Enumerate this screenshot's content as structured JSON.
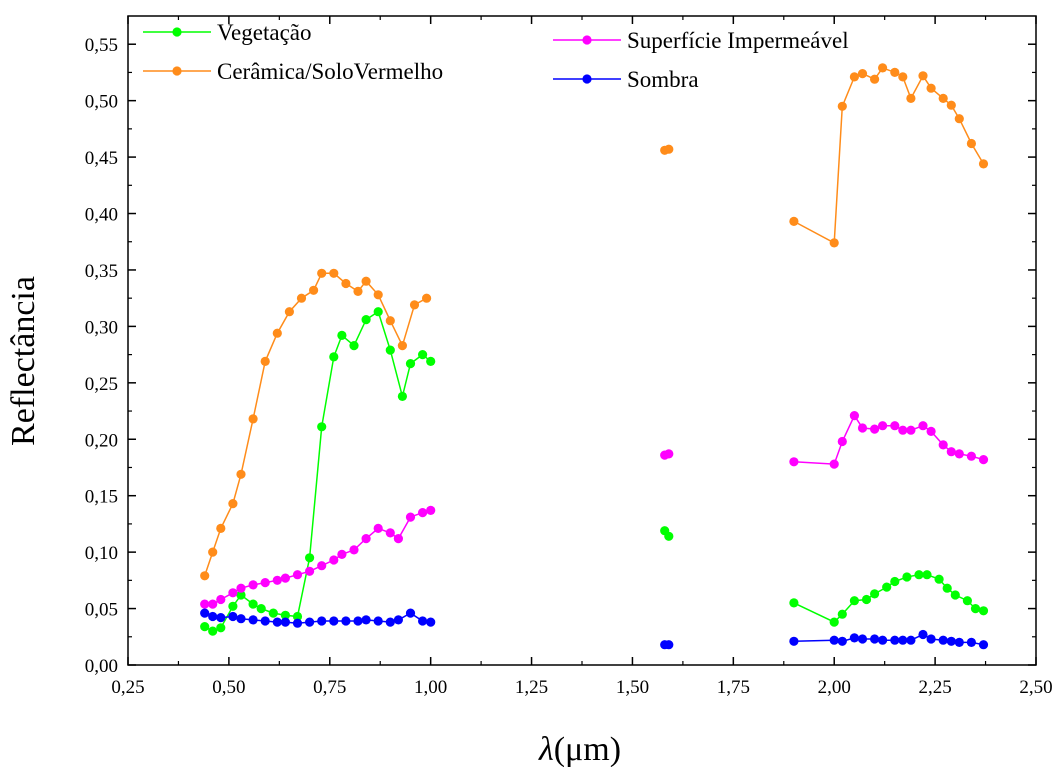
{
  "chart_data": {
    "type": "line",
    "title": "",
    "xlabel_symbol": "λ",
    "xlabel_unit": "(μm)",
    "ylabel": "Reflectância",
    "xlim": [
      0.25,
      2.5
    ],
    "ylim": [
      0.0,
      0.575
    ],
    "xticks": [
      0.25,
      0.5,
      0.75,
      1.0,
      1.25,
      1.5,
      1.75,
      2.0,
      2.25,
      2.5
    ],
    "xtick_labels": [
      "0,25",
      "0,50",
      "0,75",
      "1,00",
      "1,25",
      "1,50",
      "1,75",
      "2,00",
      "2,25",
      "2,50"
    ],
    "yticks": [
      0.0,
      0.05,
      0.1,
      0.15,
      0.2,
      0.25,
      0.3,
      0.35,
      0.4,
      0.45,
      0.5,
      0.55
    ],
    "ytick_labels": [
      "0,00",
      "0,05",
      "0,10",
      "0,15",
      "0,20",
      "0,25",
      "0,30",
      "0,35",
      "0,40",
      "0,45",
      "0,50",
      "0,55"
    ],
    "grid": false,
    "legend_placement": "top",
    "series": [
      {
        "name": "Vegetação",
        "color": "#00ff00",
        "segments": [
          [
            [
              0.44,
              0.034
            ],
            [
              0.46,
              0.03
            ],
            [
              0.48,
              0.033
            ],
            [
              0.51,
              0.052
            ],
            [
              0.53,
              0.062
            ],
            [
              0.56,
              0.054
            ],
            [
              0.58,
              0.05
            ],
            [
              0.61,
              0.046
            ],
            [
              0.64,
              0.044
            ],
            [
              0.67,
              0.043
            ],
            [
              0.7,
              0.095
            ],
            [
              0.73,
              0.211
            ],
            [
              0.76,
              0.273
            ],
            [
              0.78,
              0.292
            ],
            [
              0.81,
              0.283
            ],
            [
              0.84,
              0.306
            ],
            [
              0.87,
              0.313
            ],
            [
              0.9,
              0.279
            ],
            [
              0.93,
              0.238
            ],
            [
              0.95,
              0.267
            ],
            [
              0.98,
              0.275
            ],
            [
              1.0,
              0.269
            ]
          ],
          [
            [
              1.58,
              0.119
            ],
            [
              1.59,
              0.114
            ]
          ],
          [
            [
              1.9,
              0.055
            ],
            [
              2.0,
              0.038
            ],
            [
              2.02,
              0.045
            ],
            [
              2.05,
              0.057
            ],
            [
              2.08,
              0.058
            ],
            [
              2.1,
              0.063
            ],
            [
              2.13,
              0.069
            ],
            [
              2.15,
              0.074
            ],
            [
              2.18,
              0.078
            ],
            [
              2.21,
              0.08
            ],
            [
              2.23,
              0.08
            ],
            [
              2.26,
              0.076
            ],
            [
              2.28,
              0.068
            ],
            [
              2.3,
              0.062
            ],
            [
              2.33,
              0.057
            ],
            [
              2.35,
              0.05
            ],
            [
              2.37,
              0.048
            ]
          ]
        ]
      },
      {
        "name": "Cerâmica/SoloVermelho",
        "color": "#ff8c1a",
        "segments": [
          [
            [
              0.44,
              0.079
            ],
            [
              0.46,
              0.1
            ],
            [
              0.48,
              0.121
            ],
            [
              0.51,
              0.143
            ],
            [
              0.53,
              0.169
            ],
            [
              0.56,
              0.218
            ],
            [
              0.59,
              0.269
            ],
            [
              0.62,
              0.294
            ],
            [
              0.65,
              0.313
            ],
            [
              0.68,
              0.325
            ],
            [
              0.71,
              0.332
            ],
            [
              0.73,
              0.347
            ],
            [
              0.76,
              0.347
            ],
            [
              0.79,
              0.338
            ],
            [
              0.82,
              0.331
            ],
            [
              0.84,
              0.34
            ],
            [
              0.87,
              0.328
            ],
            [
              0.9,
              0.305
            ],
            [
              0.93,
              0.283
            ],
            [
              0.96,
              0.319
            ],
            [
              0.99,
              0.325
            ]
          ],
          [
            [
              1.58,
              0.456
            ],
            [
              1.59,
              0.457
            ]
          ],
          [
            [
              1.9,
              0.393
            ],
            [
              2.0,
              0.374
            ],
            [
              2.02,
              0.495
            ],
            [
              2.05,
              0.521
            ],
            [
              2.07,
              0.524
            ],
            [
              2.1,
              0.519
            ],
            [
              2.12,
              0.529
            ],
            [
              2.15,
              0.525
            ],
            [
              2.17,
              0.521
            ],
            [
              2.19,
              0.502
            ],
            [
              2.22,
              0.522
            ],
            [
              2.24,
              0.511
            ],
            [
              2.27,
              0.502
            ],
            [
              2.29,
              0.496
            ],
            [
              2.31,
              0.484
            ],
            [
              2.34,
              0.462
            ],
            [
              2.37,
              0.444
            ]
          ]
        ]
      },
      {
        "name": "Superfície Impermeável",
        "color": "#ff00ff",
        "segments": [
          [
            [
              0.44,
              0.054
            ],
            [
              0.46,
              0.054
            ],
            [
              0.48,
              0.058
            ],
            [
              0.51,
              0.064
            ],
            [
              0.53,
              0.068
            ],
            [
              0.56,
              0.071
            ],
            [
              0.59,
              0.073
            ],
            [
              0.62,
              0.075
            ],
            [
              0.64,
              0.077
            ],
            [
              0.67,
              0.08
            ],
            [
              0.7,
              0.083
            ],
            [
              0.73,
              0.088
            ],
            [
              0.76,
              0.093
            ],
            [
              0.78,
              0.098
            ],
            [
              0.81,
              0.102
            ],
            [
              0.84,
              0.112
            ],
            [
              0.87,
              0.121
            ],
            [
              0.9,
              0.117
            ],
            [
              0.92,
              0.112
            ],
            [
              0.95,
              0.131
            ],
            [
              0.98,
              0.135
            ],
            [
              1.0,
              0.137
            ]
          ],
          [
            [
              1.58,
              0.186
            ],
            [
              1.59,
              0.187
            ]
          ],
          [
            [
              1.9,
              0.18
            ],
            [
              2.0,
              0.178
            ],
            [
              2.02,
              0.198
            ],
            [
              2.05,
              0.221
            ],
            [
              2.07,
              0.21
            ],
            [
              2.1,
              0.209
            ],
            [
              2.12,
              0.212
            ],
            [
              2.15,
              0.212
            ],
            [
              2.17,
              0.208
            ],
            [
              2.19,
              0.208
            ],
            [
              2.22,
              0.212
            ],
            [
              2.24,
              0.207
            ],
            [
              2.27,
              0.195
            ],
            [
              2.29,
              0.189
            ],
            [
              2.31,
              0.187
            ],
            [
              2.34,
              0.185
            ],
            [
              2.37,
              0.182
            ]
          ]
        ]
      },
      {
        "name": "Sombra",
        "color": "#0000ff",
        "segments": [
          [
            [
              0.44,
              0.046
            ],
            [
              0.46,
              0.043
            ],
            [
              0.48,
              0.042
            ],
            [
              0.51,
              0.043
            ],
            [
              0.53,
              0.041
            ],
            [
              0.56,
              0.04
            ],
            [
              0.59,
              0.039
            ],
            [
              0.62,
              0.038
            ],
            [
              0.64,
              0.038
            ],
            [
              0.67,
              0.037
            ],
            [
              0.7,
              0.038
            ],
            [
              0.73,
              0.039
            ],
            [
              0.76,
              0.039
            ],
            [
              0.79,
              0.039
            ],
            [
              0.82,
              0.039
            ],
            [
              0.84,
              0.04
            ],
            [
              0.87,
              0.039
            ],
            [
              0.9,
              0.038
            ],
            [
              0.92,
              0.04
            ],
            [
              0.95,
              0.046
            ],
            [
              0.98,
              0.039
            ],
            [
              1.0,
              0.038
            ]
          ],
          [
            [
              1.58,
              0.018
            ],
            [
              1.59,
              0.018
            ]
          ],
          [
            [
              1.9,
              0.021
            ],
            [
              2.0,
              0.022
            ],
            [
              2.02,
              0.021
            ],
            [
              2.05,
              0.024
            ],
            [
              2.07,
              0.023
            ],
            [
              2.1,
              0.023
            ],
            [
              2.12,
              0.022
            ],
            [
              2.15,
              0.022
            ],
            [
              2.17,
              0.022
            ],
            [
              2.19,
              0.022
            ],
            [
              2.22,
              0.027
            ],
            [
              2.24,
              0.023
            ],
            [
              2.27,
              0.022
            ],
            [
              2.29,
              0.021
            ],
            [
              2.31,
              0.02
            ],
            [
              2.34,
              0.02
            ],
            [
              2.37,
              0.018
            ]
          ]
        ]
      }
    ]
  }
}
